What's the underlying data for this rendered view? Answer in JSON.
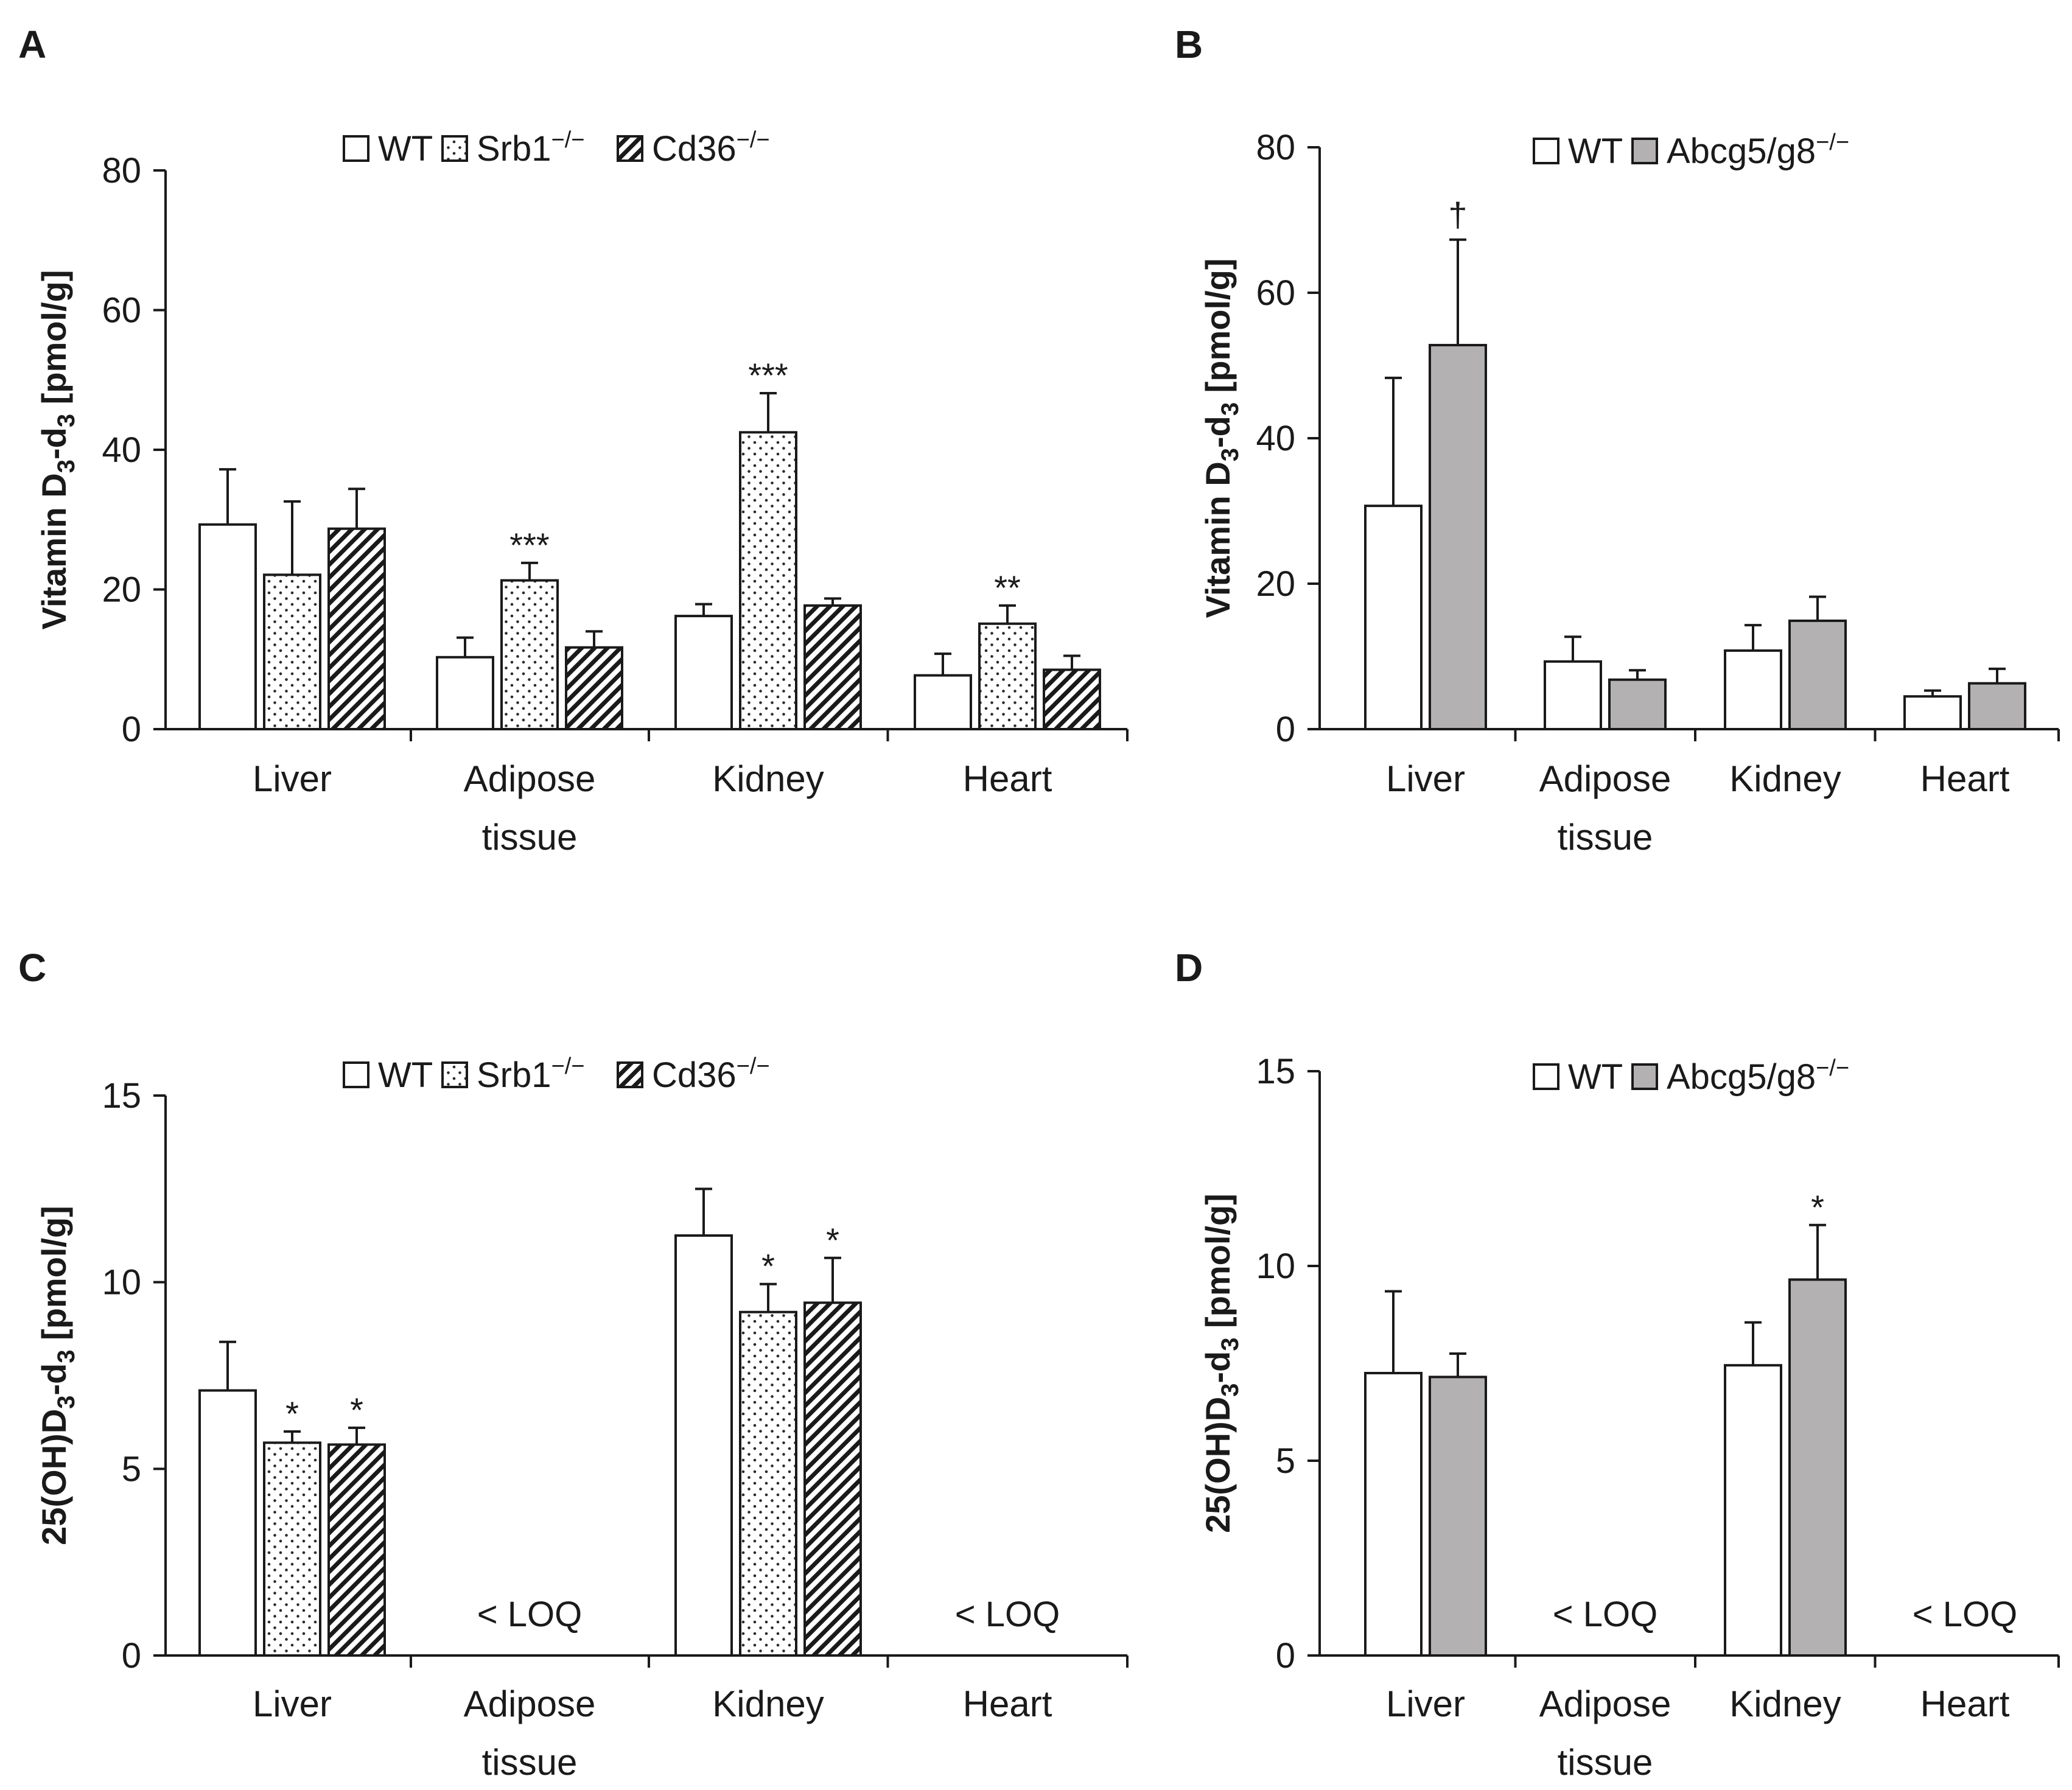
{
  "figure": {
    "colors": {
      "wt": "#ffffff",
      "abcg": "#b3b1b1",
      "axis": "#1a1a1a"
    },
    "series_styles": {
      "WT": "white",
      "Srb1": "dotted",
      "Cd36": "hatched",
      "Abcg": "gray"
    }
  },
  "chart_data": [
    {
      "panel": "A",
      "type": "bar",
      "ylabel": {
        "main": "Vitamin D",
        "sub1": "3",
        "mid": "-d",
        "sub2": "3",
        "tail": " [pmol/g]"
      },
      "ylim": [
        0,
        80
      ],
      "yticks": [
        0,
        20,
        40,
        60,
        80
      ],
      "categories": [
        [
          "Liver"
        ],
        [
          "Adipose",
          "tissue"
        ],
        [
          "Kidney"
        ],
        [
          "Heart"
        ]
      ],
      "legend": [
        {
          "name": "WT",
          "sup": ""
        },
        {
          "name": "Srb1",
          "sup": "−/−"
        },
        {
          "name": "Cd36",
          "sup": "−/−"
        }
      ],
      "series": [
        {
          "name": "WT",
          "style": "WT",
          "values": [
            29.3,
            10.3,
            16.2,
            7.7
          ],
          "errors": [
            7.9,
            2.8,
            1.7,
            3.1
          ],
          "sig": [
            "",
            "",
            "",
            ""
          ]
        },
        {
          "name": "Srb1−/−",
          "style": "Srb1",
          "values": [
            22.1,
            21.3,
            42.5,
            15.1
          ],
          "errors": [
            10.5,
            2.5,
            5.6,
            2.6
          ],
          "sig": [
            "",
            "***",
            "***",
            "**"
          ]
        },
        {
          "name": "Cd36−/−",
          "style": "Cd36",
          "values": [
            28.7,
            11.7,
            17.7,
            8.5
          ],
          "errors": [
            5.7,
            2.3,
            1.0,
            2.0
          ],
          "sig": [
            "",
            "",
            "",
            ""
          ]
        }
      ],
      "annotations": []
    },
    {
      "panel": "B",
      "type": "bar",
      "ylabel": {
        "main": "Vitamin D",
        "sub1": "3",
        "mid": "-d",
        "sub2": "3",
        "tail": " [pmol/g]"
      },
      "ylim": [
        0,
        80
      ],
      "yticks": [
        0,
        20,
        40,
        60,
        80
      ],
      "categories": [
        [
          "Liver"
        ],
        [
          "Adipose",
          "tissue"
        ],
        [
          "Kidney"
        ],
        [
          "Heart"
        ]
      ],
      "legend": [
        {
          "name": "WT",
          "sup": ""
        },
        {
          "name": "Abcg5/g8",
          "sup": "−/−"
        }
      ],
      "series": [
        {
          "name": "WT",
          "style": "WT",
          "values": [
            30.7,
            9.3,
            10.8,
            4.5
          ],
          "errors": [
            17.6,
            3.4,
            3.5,
            0.8
          ],
          "sig": [
            "",
            "",
            "",
            ""
          ]
        },
        {
          "name": "Abcg5/g8−/−",
          "style": "Abcg",
          "values": [
            52.8,
            6.8,
            14.9,
            6.3
          ],
          "errors": [
            14.5,
            1.3,
            3.3,
            2.0
          ],
          "sig": [
            "†",
            "",
            "",
            ""
          ]
        }
      ],
      "annotations": []
    },
    {
      "panel": "C",
      "type": "bar",
      "ylabel": {
        "main": "25(OH)D",
        "sub1": "3",
        "mid": "-d",
        "sub2": "3",
        "tail": " [pmol/g]"
      },
      "ylim": [
        0,
        15
      ],
      "yticks": [
        0,
        5,
        10,
        15
      ],
      "categories": [
        [
          "Liver"
        ],
        [
          "Adipose",
          "tissue"
        ],
        [
          "Kidney"
        ],
        [
          "Heart"
        ]
      ],
      "legend": [
        {
          "name": "WT",
          "sup": ""
        },
        {
          "name": "Srb1",
          "sup": "−/−"
        },
        {
          "name": "Cd36",
          "sup": "−/−"
        }
      ],
      "series": [
        {
          "name": "WT",
          "style": "WT",
          "values": [
            7.1,
            null,
            11.25,
            null
          ],
          "errors": [
            1.3,
            null,
            1.25,
            null
          ],
          "sig": [
            "",
            "",
            "",
            ""
          ]
        },
        {
          "name": "Srb1−/−",
          "style": "Srb1",
          "values": [
            5.7,
            null,
            9.2,
            null
          ],
          "errors": [
            0.3,
            null,
            0.75,
            null
          ],
          "sig": [
            "*",
            "",
            "*",
            ""
          ]
        },
        {
          "name": "Cd36−/−",
          "style": "Cd36",
          "values": [
            5.65,
            null,
            9.45,
            null
          ],
          "errors": [
            0.45,
            null,
            1.2,
            null
          ],
          "sig": [
            "*",
            "",
            "*",
            ""
          ]
        }
      ],
      "annotations": [
        {
          "category": 1,
          "text": "< LOQ"
        },
        {
          "category": 3,
          "text": "< LOQ"
        }
      ]
    },
    {
      "panel": "D",
      "type": "bar",
      "ylabel": {
        "main": "25(OH)D",
        "sub1": "3",
        "mid": "-d",
        "sub2": "3",
        "tail": " [pmol/g]"
      },
      "ylim": [
        0,
        15
      ],
      "yticks": [
        0,
        5,
        10,
        15
      ],
      "categories": [
        [
          "Liver"
        ],
        [
          "Adipose",
          "tissue"
        ],
        [
          "Kidney"
        ],
        [
          "Heart"
        ]
      ],
      "legend": [
        {
          "name": "WT",
          "sup": ""
        },
        {
          "name": "Abcg5/g8",
          "sup": "−/−"
        }
      ],
      "series": [
        {
          "name": "WT",
          "style": "WT",
          "values": [
            7.25,
            null,
            7.45,
            null
          ],
          "errors": [
            2.1,
            null,
            1.1,
            null
          ],
          "sig": [
            "",
            "",
            "",
            ""
          ]
        },
        {
          "name": "Abcg5/g8−/−",
          "style": "Abcg",
          "values": [
            7.15,
            null,
            9.65,
            null
          ],
          "errors": [
            0.6,
            null,
            1.4,
            null
          ],
          "sig": [
            "",
            "",
            "*",
            ""
          ]
        }
      ],
      "annotations": [
        {
          "category": 1,
          "text": "< LOQ"
        },
        {
          "category": 3,
          "text": "< LOQ"
        }
      ]
    }
  ]
}
